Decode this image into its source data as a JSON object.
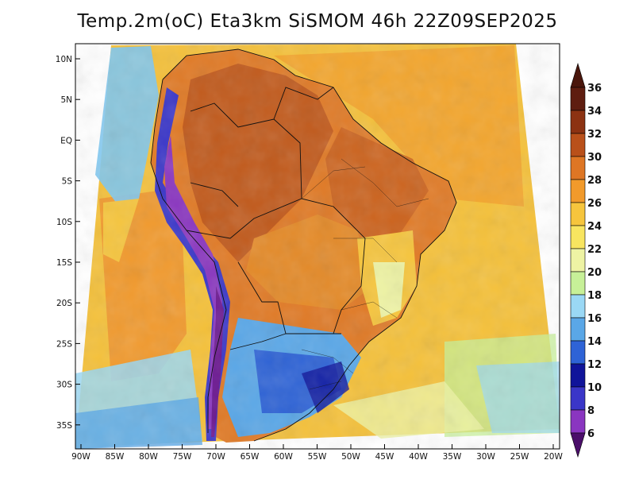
{
  "title": "Temp.2m(oC) Eta3km SiSMOM 46h 22Z09SEP2025",
  "lat_labels": [
    "10N",
    "5N",
    "EQ",
    "5S",
    "10S",
    "15S",
    "20S",
    "25S",
    "30S",
    "35S"
  ],
  "lon_labels": [
    "90W",
    "85W",
    "80W",
    "75W",
    "70W",
    "65W",
    "60W",
    "55W",
    "50W",
    "45W",
    "40W",
    "35W",
    "30W",
    "25W",
    "20W"
  ],
  "colorbar": {
    "labels": [
      "36",
      "34",
      "32",
      "30",
      "28",
      "26",
      "24",
      "22",
      "20",
      "18",
      "16",
      "14",
      "12",
      "10",
      "8",
      "6"
    ],
    "colors": [
      "#5e1d10",
      "#8c3212",
      "#b9501a",
      "#de7624",
      "#f19a2b",
      "#f6c53d",
      "#f8e560",
      "#eef3a4",
      "#c7f098",
      "#9ad8f5",
      "#5aa7e7",
      "#2e63d6",
      "#10149a",
      "#3a36c8",
      "#8a36c0",
      "#6a1690"
    ],
    "top_arrow_color": "#4a160c",
    "bottom_arrow_color": "#4b0f6a"
  }
}
